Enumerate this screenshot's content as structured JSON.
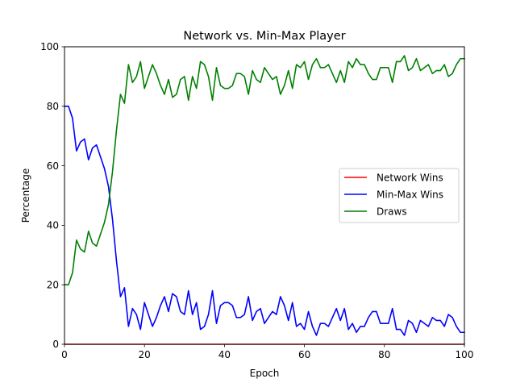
{
  "chart_data": {
    "type": "line",
    "title": "Network vs. Min-Max Player",
    "xlabel": "Epoch",
    "ylabel": "Percentage",
    "xlim": [
      0,
      100
    ],
    "ylim": [
      0,
      100
    ],
    "xticks": [
      0,
      20,
      40,
      60,
      80,
      100
    ],
    "yticks": [
      0,
      20,
      40,
      60,
      80,
      100
    ],
    "grid": false,
    "legend_position": "center-right",
    "x": [
      0,
      1,
      2,
      3,
      4,
      5,
      6,
      7,
      8,
      9,
      10,
      11,
      12,
      13,
      14,
      15,
      16,
      17,
      18,
      19,
      20,
      21,
      22,
      23,
      24,
      25,
      26,
      27,
      28,
      29,
      30,
      31,
      32,
      33,
      34,
      35,
      36,
      37,
      38,
      39,
      40,
      41,
      42,
      43,
      44,
      45,
      46,
      47,
      48,
      49,
      50,
      51,
      52,
      53,
      54,
      55,
      56,
      57,
      58,
      59,
      60,
      61,
      62,
      63,
      64,
      65,
      66,
      67,
      68,
      69,
      70,
      71,
      72,
      73,
      74,
      75,
      76,
      77,
      78,
      79,
      80,
      81,
      82,
      83,
      84,
      85,
      86,
      87,
      88,
      89,
      90,
      91,
      92,
      93,
      94,
      95,
      96,
      97,
      98,
      99,
      100
    ],
    "series": [
      {
        "name": "Network Wins",
        "color": "#ff0000",
        "values": [
          0,
          0,
          0,
          0,
          0,
          0,
          0,
          0,
          0,
          0,
          0,
          0,
          0,
          0,
          0,
          0,
          0,
          0,
          0,
          0,
          0,
          0,
          0,
          0,
          0,
          0,
          0,
          0,
          0,
          0,
          0,
          0,
          0,
          0,
          0,
          0,
          0,
          0,
          0,
          0,
          0,
          0,
          0,
          0,
          0,
          0,
          0,
          0,
          0,
          0,
          0,
          0,
          0,
          0,
          0,
          0,
          0,
          0,
          0,
          0,
          0,
          0,
          0,
          0,
          0,
          0,
          0,
          0,
          0,
          0,
          0,
          0,
          0,
          0,
          0,
          0,
          0,
          0,
          0,
          0,
          0,
          0,
          0,
          0,
          0,
          0,
          0,
          0,
          0,
          0,
          0,
          0,
          0,
          0,
          0,
          0,
          0,
          0,
          0,
          0,
          0
        ]
      },
      {
        "name": "Min-Max Wins",
        "color": "#0000ff",
        "values": [
          80,
          80,
          76,
          65,
          68,
          69,
          62,
          66,
          67,
          63,
          59,
          53,
          42,
          28,
          16,
          19,
          6,
          12,
          10,
          5,
          14,
          10,
          6,
          9,
          13,
          16,
          11,
          17,
          16,
          11,
          10,
          18,
          10,
          14,
          5,
          6,
          10,
          18,
          7,
          13,
          14,
          14,
          13,
          9,
          9,
          10,
          16,
          8,
          11,
          12,
          7,
          9,
          11,
          10,
          16,
          13,
          8,
          14,
          6,
          7,
          5,
          11,
          6,
          3,
          7,
          7,
          6,
          9,
          12,
          8,
          12,
          5,
          7,
          4,
          6,
          6,
          9,
          11,
          11,
          7,
          7,
          7,
          12,
          5,
          5,
          3,
          8,
          7,
          4,
          8,
          7,
          6,
          9,
          8,
          8,
          6,
          10,
          9,
          6,
          4,
          4
        ]
      },
      {
        "name": "Draws",
        "color": "#008000",
        "values": [
          20,
          20,
          24,
          35,
          32,
          31,
          38,
          34,
          33,
          37,
          41,
          47,
          58,
          72,
          84,
          81,
          94,
          88,
          90,
          95,
          86,
          90,
          94,
          91,
          87,
          84,
          89,
          83,
          84,
          89,
          90,
          82,
          90,
          86,
          95,
          94,
          90,
          82,
          93,
          87,
          86,
          86,
          87,
          91,
          91,
          90,
          84,
          92,
          89,
          88,
          93,
          91,
          89,
          90,
          84,
          87,
          92,
          86,
          94,
          93,
          95,
          89,
          94,
          96,
          93,
          93,
          94,
          91,
          88,
          92,
          88,
          95,
          93,
          96,
          94,
          94,
          91,
          89,
          89,
          93,
          93,
          93,
          88,
          95,
          95,
          97,
          92,
          93,
          96,
          92,
          93,
          94,
          91,
          92,
          92,
          94,
          90,
          91,
          94,
          96,
          96
        ]
      }
    ]
  }
}
